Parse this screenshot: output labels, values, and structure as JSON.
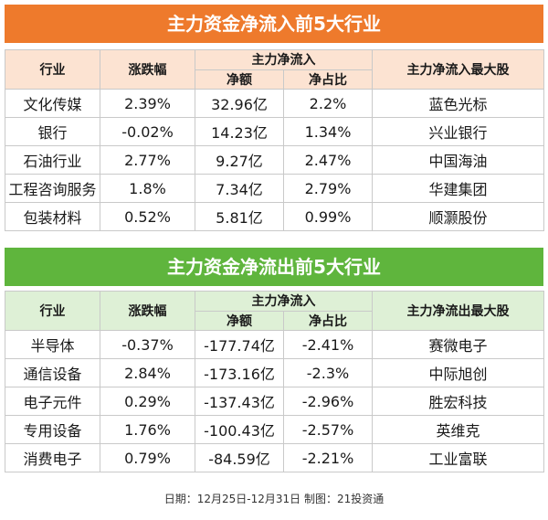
{
  "inflow": {
    "title": "主力资金净流入前5大行业",
    "headers": {
      "sector": "行业",
      "change": "涨跌幅",
      "group": "主力净流入",
      "net_amount": "净额",
      "net_ratio": "净占比",
      "top_stock": "主力净流入最大股"
    },
    "rows": [
      {
        "sector": "文化传媒",
        "change": "2.39%",
        "net_amount": "32.96亿",
        "net_ratio": "2.2%",
        "top_stock": "蓝色光标"
      },
      {
        "sector": "银行",
        "change": "-0.02%",
        "net_amount": "14.23亿",
        "net_ratio": "1.34%",
        "top_stock": "兴业银行"
      },
      {
        "sector": "石油行业",
        "change": "2.77%",
        "net_amount": "9.27亿",
        "net_ratio": "2.47%",
        "top_stock": "中国海油"
      },
      {
        "sector": "工程咨询服务",
        "change": "1.8%",
        "net_amount": "7.34亿",
        "net_ratio": "2.79%",
        "top_stock": "华建集团"
      },
      {
        "sector": "包装材料",
        "change": "0.52%",
        "net_amount": "5.81亿",
        "net_ratio": "0.99%",
        "top_stock": "顺灏股份"
      }
    ]
  },
  "outflow": {
    "title": "主力资金净流出前5大行业",
    "headers": {
      "sector": "行业",
      "change": "涨跌幅",
      "group": "主力净流入",
      "net_amount": "净额",
      "net_ratio": "净占比",
      "top_stock": "主力净流出最大股"
    },
    "rows": [
      {
        "sector": "半导体",
        "change": "-0.37%",
        "net_amount": "-177.74亿",
        "net_ratio": "-2.41%",
        "top_stock": "赛微电子"
      },
      {
        "sector": "通信设备",
        "change": "2.84%",
        "net_amount": "-173.16亿",
        "net_ratio": "-2.3%",
        "top_stock": "中际旭创"
      },
      {
        "sector": "电子元件",
        "change": "0.29%",
        "net_amount": "-137.43亿",
        "net_ratio": "-2.96%",
        "top_stock": "胜宏科技"
      },
      {
        "sector": "专用设备",
        "change": "1.76%",
        "net_amount": "-100.43亿",
        "net_ratio": "-2.57%",
        "top_stock": "英维克"
      },
      {
        "sector": "消费电子",
        "change": "0.79%",
        "net_amount": "-84.59亿",
        "net_ratio": "-2.21%",
        "top_stock": "工业富联"
      }
    ]
  },
  "footer": "日期：12月25日-12月31日 制图：21投资通",
  "colors": {
    "inflow_title": "#ee7a2c",
    "inflow_header": "#fce3d2",
    "outflow_title": "#5fb53d",
    "outflow_header": "#def0d6"
  },
  "chart_data": [
    {
      "type": "table",
      "title": "主力资金净流入前5大行业",
      "columns": [
        "行业",
        "涨跌幅",
        "主力净流入 净额",
        "主力净流入 净占比",
        "主力净流入最大股"
      ],
      "rows": [
        [
          "文化传媒",
          "2.39%",
          "32.96亿",
          "2.2%",
          "蓝色光标"
        ],
        [
          "银行",
          "-0.02%",
          "14.23亿",
          "1.34%",
          "兴业银行"
        ],
        [
          "石油行业",
          "2.77%",
          "9.27亿",
          "2.47%",
          "中国海油"
        ],
        [
          "工程咨询服务",
          "1.8%",
          "7.34亿",
          "2.79%",
          "华建集团"
        ],
        [
          "包装材料",
          "0.52%",
          "5.81亿",
          "0.99%",
          "顺灏股份"
        ]
      ]
    },
    {
      "type": "table",
      "title": "主力资金净流出前5大行业",
      "columns": [
        "行业",
        "涨跌幅",
        "主力净流入 净额",
        "主力净流入 净占比",
        "主力净流出最大股"
      ],
      "rows": [
        [
          "半导体",
          "-0.37%",
          "-177.74亿",
          "-2.41%",
          "赛微电子"
        ],
        [
          "通信设备",
          "2.84%",
          "-173.16亿",
          "-2.3%",
          "中际旭创"
        ],
        [
          "电子元件",
          "0.29%",
          "-137.43亿",
          "-2.96%",
          "胜宏科技"
        ],
        [
          "专用设备",
          "1.76%",
          "-100.43亿",
          "-2.57%",
          "英维克"
        ],
        [
          "消费电子",
          "0.79%",
          "-84.59亿",
          "-2.21%",
          "工业富联"
        ]
      ]
    }
  ]
}
